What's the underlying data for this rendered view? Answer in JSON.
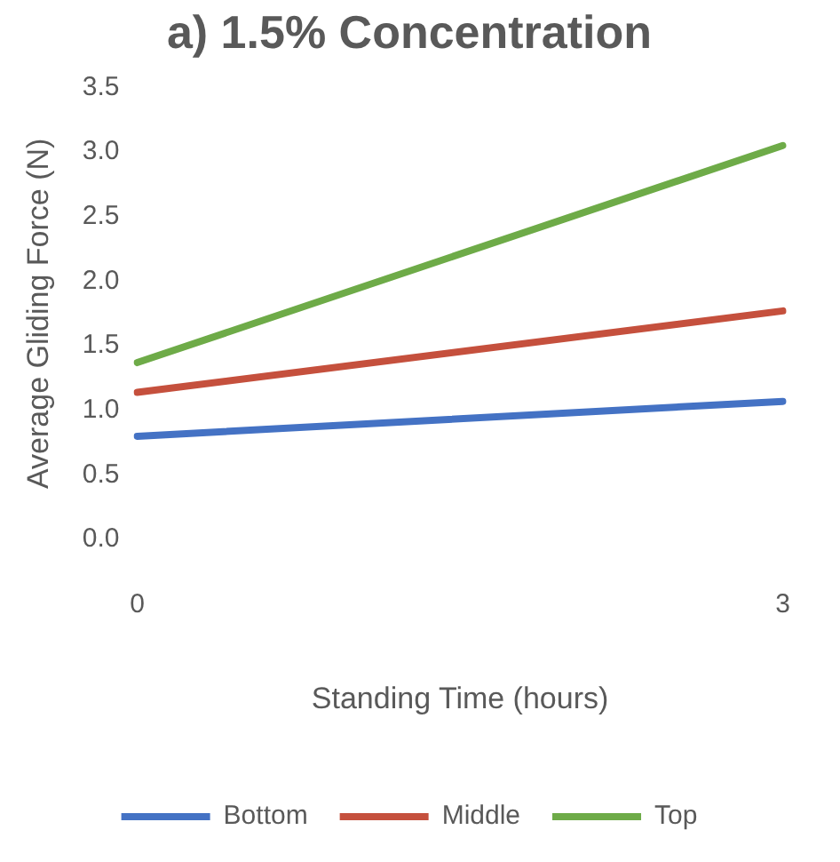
{
  "chart_data": {
    "type": "line",
    "title": "a) 1.5% Concentration",
    "xlabel": "Standing Time (hours)",
    "ylabel": "Average Gliding Force (N)",
    "categories": [
      "0",
      "3"
    ],
    "series": [
      {
        "name": "Bottom",
        "color": "#4472c4",
        "values": [
          0.8,
          1.07
        ]
      },
      {
        "name": "Middle",
        "color": "#c5503d",
        "values": [
          1.14,
          1.77
        ]
      },
      {
        "name": "Top",
        "color": "#6eab48",
        "values": [
          1.37,
          3.05
        ]
      }
    ],
    "ylim": [
      0,
      3.5
    ],
    "yticks": [
      {
        "value": 0,
        "label": "0.0"
      },
      {
        "value": 0.5,
        "label": "0.5"
      },
      {
        "value": 1,
        "label": "1.0"
      },
      {
        "value": 1.5,
        "label": "1.5"
      },
      {
        "value": 2,
        "label": "2.0"
      },
      {
        "value": 2.5,
        "label": "2.5"
      },
      {
        "value": 3,
        "label": "3.0"
      },
      {
        "value": 3.5,
        "label": "3.5"
      }
    ],
    "grid": false,
    "legend": "bottom",
    "marker": "none",
    "line_style": "solid"
  }
}
